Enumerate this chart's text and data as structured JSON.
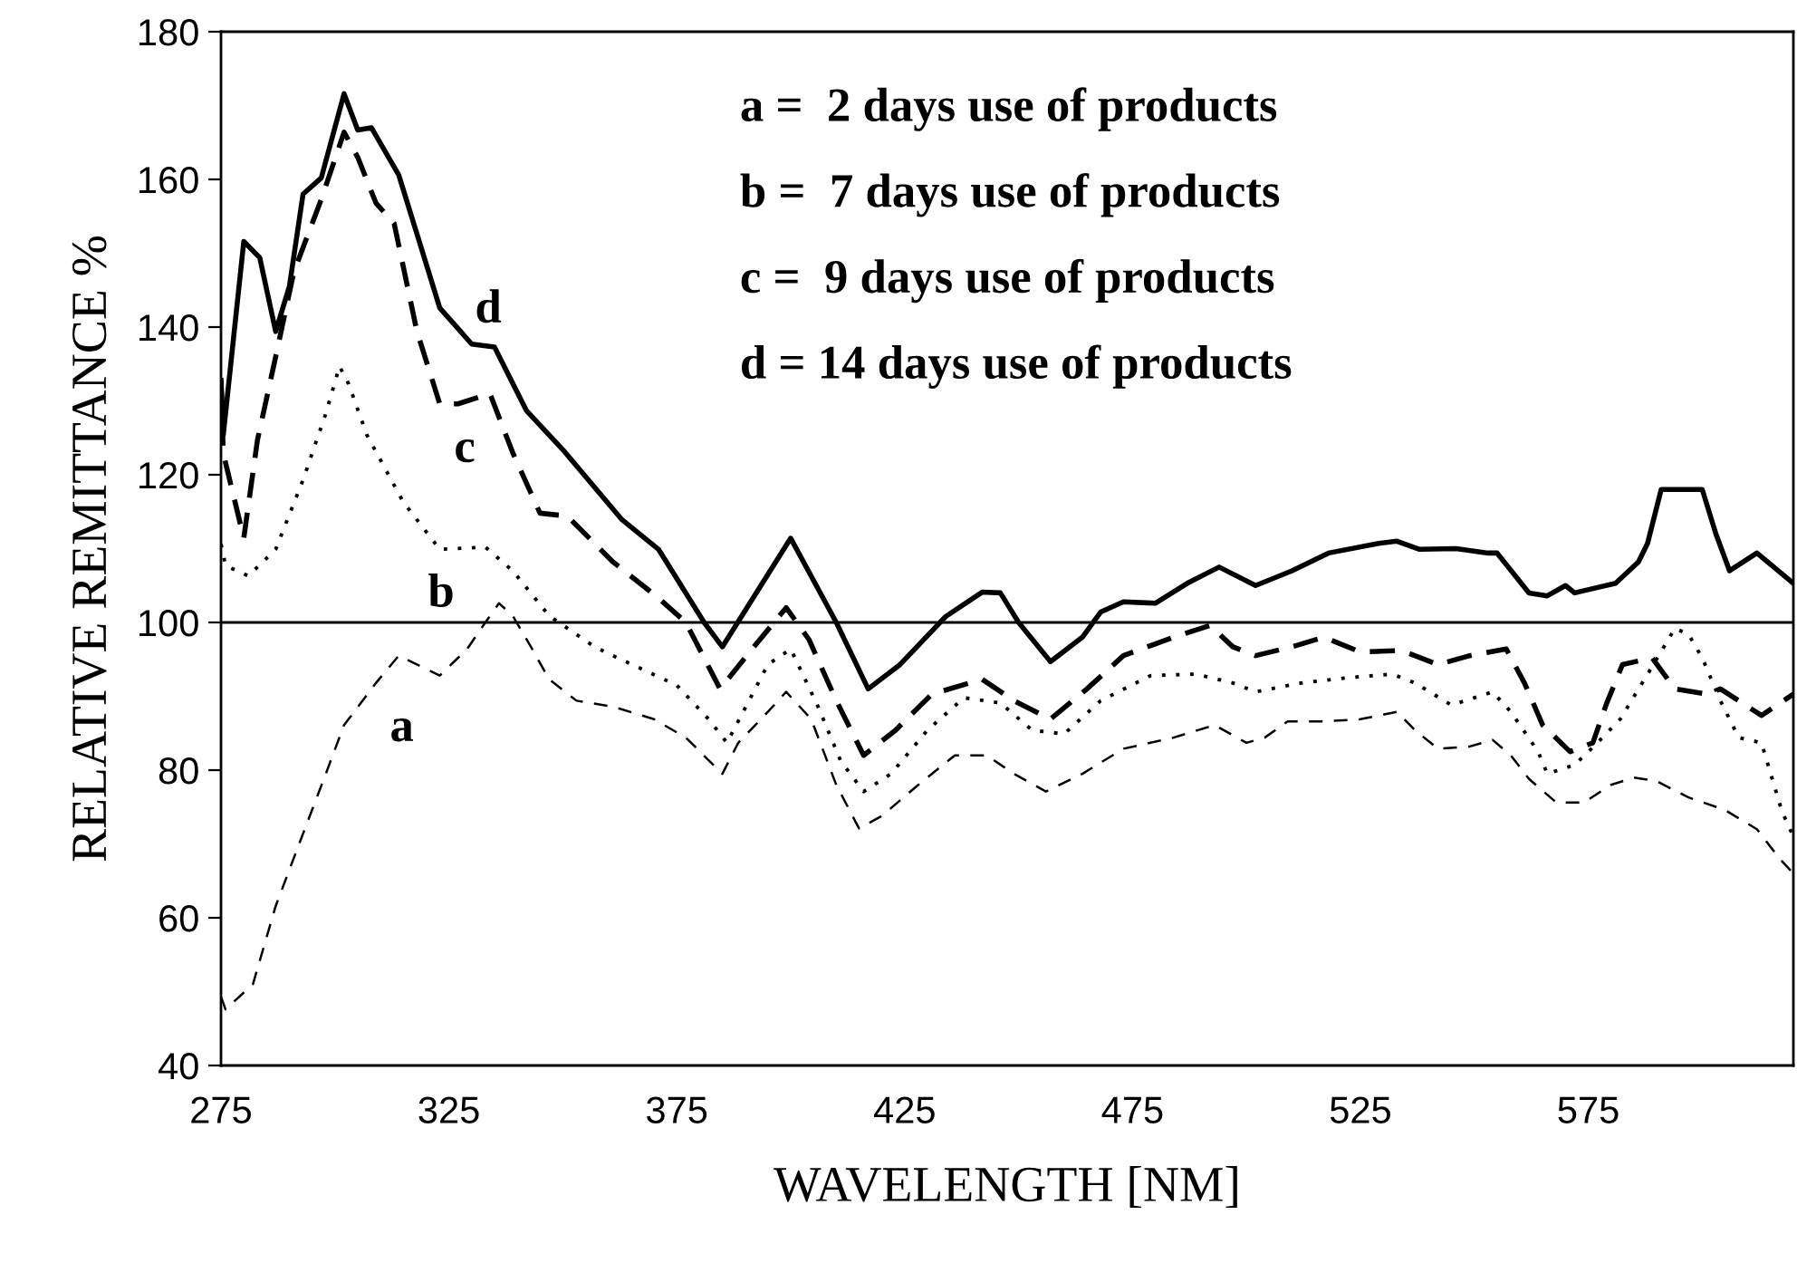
{
  "chart_data": {
    "type": "line",
    "xlabel": "WAVELENGTH [NM]",
    "ylabel": "RELATIVE REMITTANCE %",
    "xlim": [
      275,
      620
    ],
    "xticks": [
      275,
      325,
      375,
      425,
      475,
      525,
      575
    ],
    "ylim": [
      40,
      180
    ],
    "yticks": [
      40,
      60,
      80,
      100,
      120,
      140,
      160,
      180
    ],
    "grid": false,
    "legend": false,
    "marker": "none",
    "ref_lines": [
      {
        "axis": "y",
        "value": 100,
        "color": "#000000",
        "line_style": "solid"
      }
    ],
    "series": [
      {
        "name": "a",
        "color": "#000000",
        "line_style": "dashed",
        "x": [
          275,
          276,
          282,
          287,
          293,
          298,
          302,
          309,
          314,
          319,
          323,
          329,
          333,
          336,
          339,
          343,
          347,
          353,
          361,
          370,
          377,
          385,
          388.5,
          395,
          399,
          404.5,
          410,
          415,
          420,
          428,
          436,
          443,
          449,
          456,
          464,
          473,
          484,
          493,
          500,
          504,
          509,
          517,
          525,
          533,
          537,
          542,
          549,
          554,
          558,
          562,
          568,
          574,
          580,
          585,
          590,
          597,
          605,
          612,
          617,
          620
        ],
        "values": [
          49.3,
          47.6,
          51,
          61.6,
          71.4,
          79.5,
          86.1,
          91.8,
          95.5,
          94,
          92.8,
          96.4,
          100,
          102.6,
          100.9,
          96.7,
          92.3,
          89.4,
          88.6,
          86.9,
          84.4,
          79.5,
          83.7,
          87.9,
          90.6,
          86.9,
          78,
          72.1,
          73.8,
          78,
          82,
          82,
          79.5,
          77.1,
          79.5,
          82.9,
          84.4,
          86.1,
          83.7,
          84.4,
          86.6,
          86.6,
          86.9,
          87.9,
          85.4,
          82.9,
          83.2,
          84.1,
          82,
          78.8,
          75.6,
          75.6,
          78,
          79,
          78.5,
          76.3,
          74.6,
          72,
          68,
          66
        ]
      },
      {
        "name": "b",
        "color": "#000000",
        "line_style": "dotted",
        "x": [
          275,
          276,
          281,
          287,
          293,
          298,
          301,
          303,
          307,
          315,
          323,
          333,
          339,
          347,
          357,
          361,
          375,
          382,
          386,
          395,
          400,
          406,
          411,
          416,
          422,
          430,
          438,
          446,
          453,
          460,
          468,
          479,
          489,
          497,
          502,
          512,
          522,
          532,
          537,
          545,
          554,
          558,
          564,
          566,
          572,
          577,
          582,
          589,
          594,
          597,
          600,
          604,
          608,
          613,
          616,
          617.5,
          620
        ],
        "values": [
          110.6,
          107.7,
          106.3,
          109.9,
          119.3,
          128.3,
          134.7,
          132.3,
          125.4,
          116.3,
          109.9,
          110.2,
          107,
          100.9,
          96.7,
          95.5,
          91.5,
          86.9,
          83.7,
          94.3,
          96.4,
          88.6,
          81.2,
          77.1,
          79.5,
          85.4,
          89.8,
          89.1,
          85.4,
          84.9,
          89.4,
          92.8,
          93,
          91.8,
          90.6,
          91.8,
          92.5,
          93,
          91.8,
          88.8,
          90.6,
          87.9,
          82.5,
          79.5,
          80.7,
          83.7,
          86.9,
          94,
          99.2,
          98.4,
          95.2,
          89.4,
          84.4,
          83.7,
          77.5,
          74.4,
          71
        ]
      },
      {
        "name": "c",
        "color": "#000000",
        "line_style": "dashed",
        "x": [
          275,
          275.5,
          280,
          283,
          287,
          291,
          297,
          302,
          305,
          309,
          313,
          318,
          323,
          327,
          334,
          339,
          345,
          351,
          361,
          371,
          377,
          384.5,
          391,
          399,
          404,
          410,
          416,
          423,
          431,
          442,
          449,
          457,
          465,
          473,
          484,
          492,
          497,
          502,
          510,
          517,
          525,
          534,
          542,
          549,
          557,
          561,
          565,
          571,
          576,
          579,
          582.5,
          589,
          594,
          601,
          604,
          608,
          613,
          620
        ],
        "values": [
          132.8,
          122.9,
          111.4,
          124.7,
          136,
          147.5,
          157.3,
          166.4,
          163,
          156.8,
          154,
          139.4,
          129.6,
          129.6,
          131,
          123,
          114.8,
          114.4,
          108.2,
          103.3,
          100,
          91,
          96,
          102,
          97.7,
          89.4,
          82,
          85.4,
          90.3,
          92.3,
          89.4,
          86.9,
          91,
          95.5,
          98,
          99.6,
          96.7,
          95.5,
          96.7,
          98,
          96,
          96.2,
          94.3,
          95.5,
          96.4,
          91.8,
          86.1,
          82.5,
          83.7,
          89,
          94.3,
          95.2,
          91,
          90.3,
          91,
          89.4,
          87.4,
          90.3
        ]
      },
      {
        "name": "d",
        "color": "#000000",
        "line_style": "solid",
        "x": [
          275,
          275.5,
          280,
          283.5,
          287,
          290,
          293,
          297,
          302,
          305,
          308,
          314,
          323,
          330,
          335,
          342,
          350,
          363,
          371,
          381,
          385,
          400,
          410,
          417,
          424,
          434,
          442,
          446,
          450,
          457,
          464,
          468,
          473,
          480,
          487,
          494,
          502,
          510,
          518,
          529,
          533,
          538,
          546,
          553,
          555,
          562,
          566,
          570,
          572,
          581,
          586,
          588,
          591,
          600,
          603,
          606,
          612,
          620
        ],
        "values": [
          132.8,
          125.4,
          151.6,
          149.4,
          139.4,
          145.5,
          158,
          160.2,
          171.6,
          166.7,
          167,
          160.6,
          142.6,
          137.7,
          137.3,
          128.7,
          123.4,
          113.9,
          109.9,
          100,
          96.7,
          111.4,
          100,
          91,
          94.3,
          100.8,
          104.1,
          104,
          100,
          94.7,
          98,
          101.4,
          102.8,
          102.6,
          105.3,
          107.5,
          105,
          107,
          109.4,
          110.7,
          111,
          109.9,
          110,
          109.4,
          109.4,
          104,
          103.6,
          105,
          104,
          105.3,
          108.2,
          110.7,
          118,
          118,
          112,
          107,
          109.4,
          105.3
        ]
      }
    ],
    "annotations": [
      "a =  2 days use of products",
      "b =  7 days use of products",
      "c =  9 days use of products",
      "d = 14 days use of products"
    ]
  }
}
